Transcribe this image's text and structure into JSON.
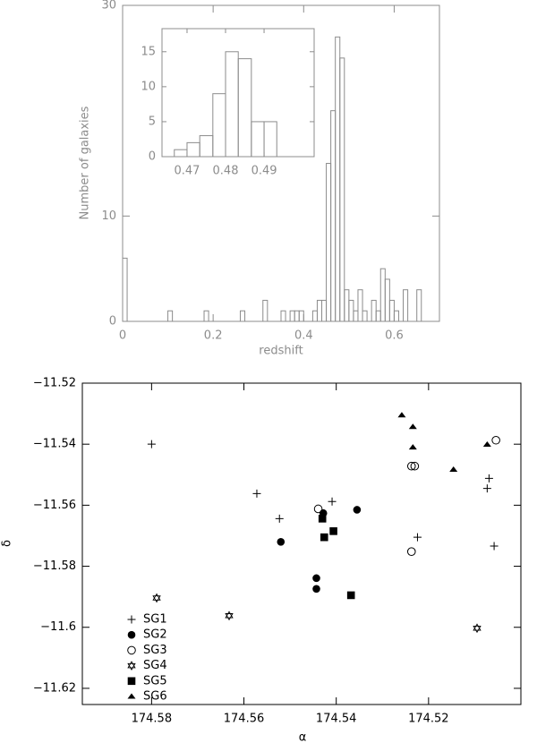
{
  "chart_data": [
    {
      "type": "histogram",
      "color": "#8c8c8c",
      "x_label": "redshift",
      "y_label": "Number of galaxies",
      "bins": [
        0,
        0.01,
        0.02,
        0.03,
        0.04,
        0.05,
        0.06,
        0.07,
        0.08,
        0.09,
        0.1,
        0.11,
        0.12,
        0.13,
        0.14,
        0.15,
        0.16,
        0.17,
        0.18,
        0.19,
        0.2,
        0.21,
        0.22,
        0.23,
        0.24,
        0.25,
        0.26,
        0.27,
        0.28,
        0.29,
        0.3,
        0.31,
        0.32,
        0.33,
        0.34,
        0.35,
        0.36,
        0.37,
        0.38,
        0.39,
        0.4,
        0.41,
        0.42,
        0.43,
        0.44,
        0.45,
        0.46,
        0.47,
        0.48,
        0.49,
        0.5,
        0.51,
        0.52,
        0.53,
        0.54,
        0.55,
        0.56,
        0.57,
        0.58,
        0.59,
        0.6,
        0.61,
        0.62,
        0.63,
        0.64,
        0.65,
        0.66,
        0.67,
        0.68,
        0.69,
        0.7
      ],
      "values": [
        6,
        0,
        0,
        0,
        0,
        0,
        0,
        0,
        0,
        0,
        1,
        0,
        0,
        0,
        0,
        0,
        0,
        0,
        1,
        0,
        0,
        0,
        0,
        0,
        0,
        0,
        1,
        0,
        0,
        0,
        0,
        2,
        0,
        0,
        0,
        1,
        0,
        1,
        1,
        1,
        0,
        0,
        1,
        2,
        2,
        15,
        20,
        27,
        25,
        3,
        2,
        1,
        3,
        1,
        0,
        2,
        1,
        5,
        4,
        2,
        1,
        0,
        3,
        0,
        0,
        3,
        0,
        0,
        0,
        0
      ],
      "xlim": [
        0,
        0.7
      ],
      "xticks": [
        0,
        0.2,
        0.4,
        0.6
      ],
      "ylim": [
        0,
        30
      ],
      "yticks": [
        0,
        10,
        30
      ]
    },
    {
      "type": "histogram",
      "color": "#8c8c8c",
      "bins": [
        0.4667,
        0.47,
        0.4733,
        0.4767,
        0.48,
        0.4833,
        0.4867,
        0.49,
        0.4933
      ],
      "values": [
        1,
        2,
        3,
        9,
        15,
        14,
        5,
        5
      ],
      "xlim": [
        0.4635,
        0.503
      ],
      "xticks": [
        0.47,
        0.48,
        0.49
      ],
      "ylim": [
        0,
        18.3
      ],
      "yticks": [
        0,
        5,
        10,
        15
      ]
    },
    {
      "type": "scatter",
      "x_label": "α",
      "y_label": "δ",
      "legend": "lower left",
      "xlim": [
        174.595,
        174.5
      ],
      "xticks": [
        174.58,
        174.56,
        174.54,
        174.52
      ],
      "ylim": [
        -11.6253,
        -11.52
      ],
      "yticks": [
        {
          "value": -11.52,
          "label": "−11.52"
        },
        {
          "value": -11.54,
          "label": "−11.54"
        },
        {
          "value": -11.56,
          "label": "−11.56"
        },
        {
          "value": -11.58,
          "label": "−11.58"
        },
        {
          "value": -11.6,
          "label": "−11.6"
        },
        {
          "value": -11.62,
          "label": "−11.62"
        }
      ],
      "series": [
        {
          "name": "SG1",
          "marker": "plus",
          "color": "#000000",
          "x": [
            174.58,
            174.5572,
            174.5523,
            174.5409,
            174.5224,
            174.5069,
            174.5073,
            174.5058
          ],
          "y": [
            -11.54,
            -11.5562,
            -11.5644,
            -11.5588,
            -11.5705,
            -11.5512,
            -11.5545,
            -11.5734
          ]
        },
        {
          "name": "SG2",
          "marker": "circle",
          "color": "#000000",
          "x": [
            174.552,
            174.5428,
            174.5355,
            174.5443,
            174.5443
          ],
          "y": [
            -11.572,
            -11.5626,
            -11.5615,
            -11.5839,
            -11.5874
          ]
        },
        {
          "name": "SG3",
          "marker": "circle-open",
          "color": "#000000",
          "x": [
            174.5439,
            174.5237,
            174.523,
            174.5237,
            174.5054
          ],
          "y": [
            -11.5612,
            -11.5472,
            -11.5472,
            -11.5752,
            -11.5387
          ]
        },
        {
          "name": "SG4",
          "marker": "star",
          "color": "#000000",
          "x": [
            174.5789,
            174.5632,
            174.5095
          ],
          "y": [
            -11.5904,
            -11.5962,
            -11.6003
          ]
        },
        {
          "name": "SG5",
          "marker": "square",
          "color": "#000000",
          "x": [
            174.543,
            174.5426,
            174.5406,
            174.5368
          ],
          "y": [
            -11.5644,
            -11.5705,
            -11.5685,
            -11.5895
          ]
        },
        {
          "name": "SG6",
          "marker": "triangle",
          "color": "#000000",
          "x": [
            174.5258,
            174.5234,
            174.5234,
            174.5146,
            174.5073
          ],
          "y": [
            -11.5305,
            -11.5343,
            -11.541,
            -11.5483,
            -11.5401
          ]
        }
      ]
    }
  ]
}
